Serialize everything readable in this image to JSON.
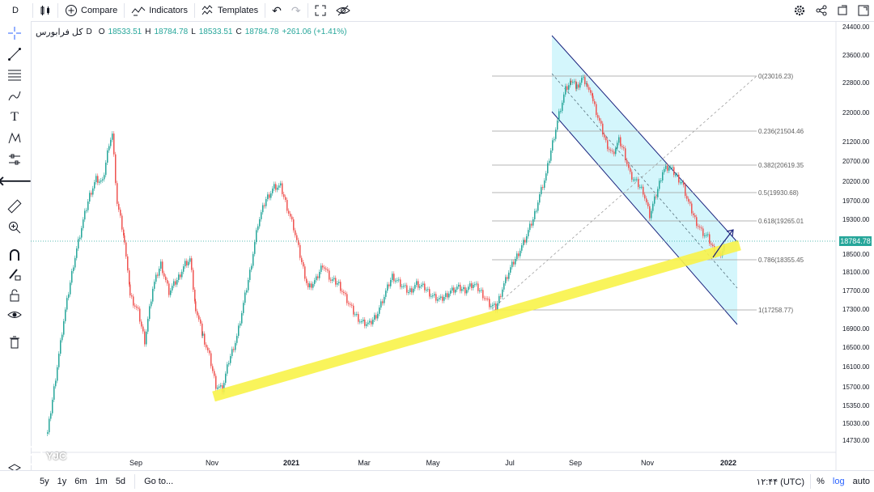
{
  "toolbar": {
    "interval": "D",
    "compare_label": "Compare",
    "indicators_label": "Indicators",
    "templates_label": "Templates"
  },
  "legend": {
    "symbol": "کل فرابورس",
    "interval": "D",
    "open_label": "O",
    "open": "18533.51",
    "high_label": "H",
    "high": "18784.78",
    "low_label": "L",
    "low": "18533.51",
    "close_label": "C",
    "close": "18784.78",
    "change": "+261.06 (+1.41%)"
  },
  "price_axis": {
    "ticks": [
      "24400.00",
      "23600.00",
      "22800.00",
      "22000.00",
      "21200.00",
      "20700.00",
      "20200.00",
      "19700.00",
      "19300.00",
      "18900.00",
      "18500.00",
      "18100.00",
      "17700.00",
      "17300.00",
      "16900.00",
      "16500.00",
      "16100.00",
      "15700.00",
      "15350.00",
      "15030.00",
      "14730.00"
    ],
    "current_price": "18784.78"
  },
  "time_axis": {
    "ticks": [
      "Sep",
      "Nov",
      "2021",
      "Mar",
      "May",
      "Jul",
      "Sep",
      "Nov",
      "2022"
    ]
  },
  "fibonacci": {
    "levels": [
      {
        "label": "0(23016.23)"
      },
      {
        "label": "0.236(21504.46"
      },
      {
        "label": "0.382(20619.35"
      },
      {
        "label": "0.5(19930.68)"
      },
      {
        "label": "0.618(19265.01"
      },
      {
        "label": "0.786(18355.45"
      },
      {
        "label": "1(17258.77)"
      }
    ]
  },
  "bottom": {
    "ranges": [
      "5y",
      "1y",
      "6m",
      "1m",
      "5d"
    ],
    "goto_label": "Go to...",
    "clock": "۱۲:۴۴ (UTC)",
    "percent_label": "%",
    "log_label": "log",
    "auto_label": "auto"
  },
  "watermark": {
    "text": "YJC"
  },
  "colors": {
    "up": "#26a69a",
    "down": "#ef5350",
    "channel": "#1a237e",
    "channel_fill": "#ccf5fb",
    "trendline": "#f9f34a",
    "fib": "#9e9e9e"
  }
}
